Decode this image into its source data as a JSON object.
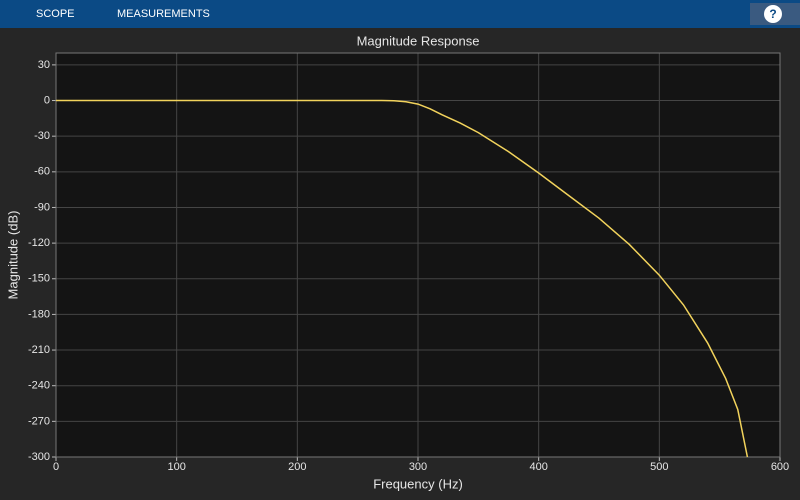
{
  "toolbar": {
    "tabs": [
      "SCOPE",
      "MEASUREMENTS"
    ],
    "help": "?"
  },
  "chart_data": {
    "type": "line",
    "title": "Magnitude Response",
    "x_label": "Frequency (Hz)",
    "y_label": "Magnitude (dB)",
    "x": [
      0,
      50,
      100,
      150,
      200,
      250,
      270,
      280,
      290,
      300,
      310,
      320,
      335,
      350,
      375,
      400,
      425,
      450,
      475,
      500,
      520,
      540,
      555,
      565,
      573
    ],
    "values": [
      0,
      0,
      0,
      0,
      0,
      0,
      0,
      -0.2,
      -1,
      -3,
      -7,
      -12,
      -19,
      -27,
      -43,
      -61,
      -80,
      -99,
      -121,
      -147,
      -172,
      -204,
      -234,
      -260,
      -300
    ],
    "color": "#f2d35c",
    "xlim": [
      0,
      600
    ],
    "xticks": [
      0,
      100,
      200,
      300,
      400,
      500,
      600
    ],
    "ylim": [
      -300,
      40
    ],
    "yticks": [
      30,
      0,
      -30,
      -60,
      -90,
      -120,
      -150,
      -180,
      -210,
      -240,
      -270,
      -300
    ],
    "grid": true
  }
}
